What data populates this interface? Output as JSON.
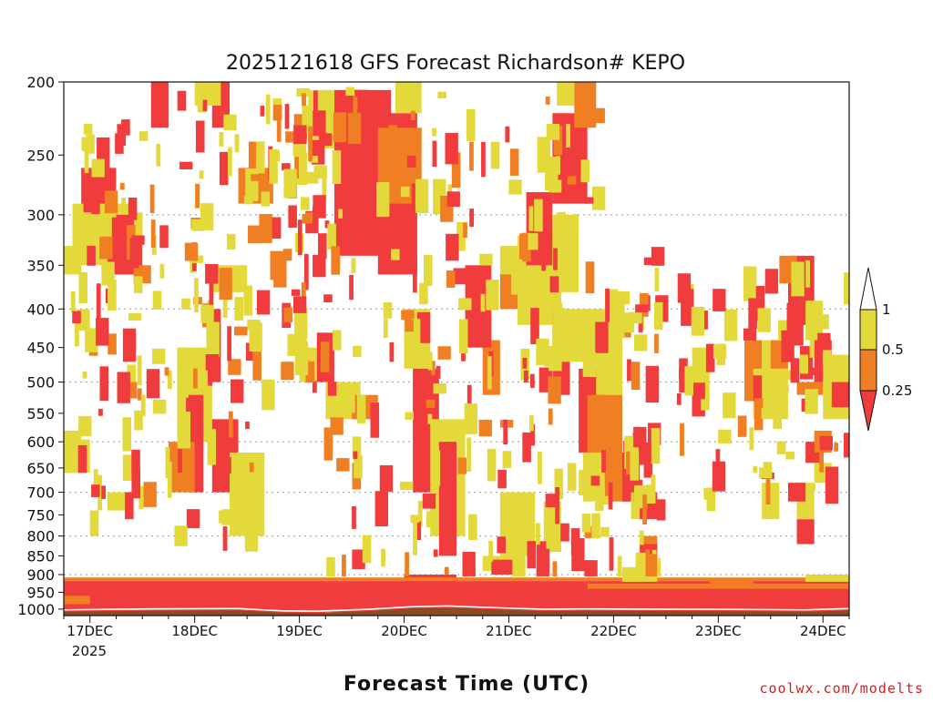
{
  "chart_data": {
    "type": "heatmap",
    "title": "2025121618 GFS Forecast Richardson# KEPO",
    "xlabel": "Forecast Time (UTC)",
    "ylabel": "",
    "source_credit": "coolwx.com/modelts",
    "x_tick_labels": [
      "17DEC",
      "18DEC",
      "19DEC",
      "20DEC",
      "21DEC",
      "22DEC",
      "23DEC",
      "24DEC"
    ],
    "x_year_label": "2025",
    "x_range_hours_from_init": [
      0,
      180
    ],
    "y_axis": "pressure_hPa",
    "y_scale": "log",
    "y_ticks": [
      200,
      250,
      300,
      350,
      400,
      450,
      500,
      550,
      600,
      650,
      700,
      750,
      800,
      850,
      900,
      950,
      1000
    ],
    "y_tick_labels": [
      "200",
      "250",
      "300",
      "350",
      "400",
      "450",
      "500",
      "550",
      "600",
      "650",
      "700",
      "750",
      "800",
      "850",
      "900",
      "950",
      "1000"
    ],
    "ylim": [
      1020,
      200
    ],
    "grid": "dotted horizontal at 300, 400, 500, 600, 700, 800, 900",
    "colorbar": {
      "placement": "right",
      "bins": [
        {
          "range": "0-0.25",
          "color": "#f03c3c"
        },
        {
          "range": "0.25-0.5",
          "color": "#ef7f22"
        },
        {
          "range": "0.5-1",
          "color": "#e3d93a"
        },
        {
          "range": ">1",
          "color": "#ffffff"
        }
      ],
      "tick_labels": [
        "0.25",
        "0.5",
        "1"
      ]
    },
    "colors": {
      "low": "#f03c3c",
      "mid": "#ef7f22",
      "high": "#e3d93a",
      "ground": "#8a4a24"
    },
    "regions": [
      {
        "cls": "low",
        "t0": 0,
        "t1": 180,
        "p0": 918,
        "p1": 1010
      },
      {
        "cls": "low",
        "t0": 6,
        "t1": 28,
        "p0": 925,
        "p1": 1010
      },
      {
        "cls": "low",
        "t0": 28,
        "t1": 36,
        "p0": 940,
        "p1": 1012
      },
      {
        "cls": "low",
        "t0": 48,
        "t1": 60,
        "p0": 945,
        "p1": 1015
      },
      {
        "cls": "low",
        "t0": 60,
        "t1": 78,
        "p0": 930,
        "p1": 1005
      },
      {
        "cls": "low",
        "t0": 78,
        "t1": 90,
        "p0": 900,
        "p1": 1000
      },
      {
        "cls": "low",
        "t0": 90,
        "t1": 102,
        "p0": 920,
        "p1": 1005
      },
      {
        "cls": "low",
        "t0": 108,
        "t1": 116,
        "p0": 920,
        "p1": 1010
      },
      {
        "cls": "mid",
        "t0": 0,
        "t1": 180,
        "p0": 908,
        "p1": 918
      },
      {
        "cls": "mid",
        "t0": 0,
        "t1": 6,
        "p0": 960,
        "p1": 985
      },
      {
        "cls": "mid",
        "t0": 120,
        "t1": 180,
        "p0": 925,
        "p1": 940
      },
      {
        "cls": "mid",
        "t0": 148,
        "t1": 158,
        "p0": 910,
        "p1": 925
      },
      {
        "cls": "high",
        "t0": 170,
        "t1": 180,
        "p0": 900,
        "p1": 920
      },
      {
        "cls": "high",
        "t0": 128,
        "t1": 136,
        "p0": 905,
        "p1": 920
      },
      {
        "cls": "low",
        "t0": 62,
        "t1": 75,
        "p0": 205,
        "p1": 340
      },
      {
        "cls": "low",
        "t0": 72,
        "t1": 81,
        "p0": 220,
        "p1": 360
      },
      {
        "cls": "mid",
        "t0": 72,
        "t1": 82,
        "p0": 230,
        "p1": 290
      },
      {
        "cls": "high",
        "t0": 56,
        "t1": 62,
        "p0": 205,
        "p1": 245
      },
      {
        "cls": "high",
        "t0": 76,
        "t1": 82,
        "p0": 200,
        "p1": 220
      },
      {
        "cls": "low",
        "t0": 112,
        "t1": 120,
        "p0": 220,
        "p1": 290
      },
      {
        "cls": "high",
        "t0": 113,
        "t1": 117,
        "p0": 200,
        "p1": 215
      },
      {
        "cls": "mid",
        "t0": 117,
        "t1": 122,
        "p0": 200,
        "p1": 230
      },
      {
        "cls": "low",
        "t0": 4,
        "t1": 12,
        "p0": 260,
        "p1": 300
      },
      {
        "cls": "high",
        "t0": 2,
        "t1": 16,
        "p0": 290,
        "p1": 350
      },
      {
        "cls": "low",
        "t0": 10,
        "t1": 18,
        "p0": 300,
        "p1": 360
      },
      {
        "cls": "high",
        "t0": 0,
        "t1": 4,
        "p0": 330,
        "p1": 360
      },
      {
        "cls": "low",
        "t0": 34,
        "t1": 38,
        "p0": 200,
        "p1": 230
      },
      {
        "cls": "high",
        "t0": 30,
        "t1": 36,
        "p0": 200,
        "p1": 215
      },
      {
        "cls": "mid",
        "t0": 40,
        "t1": 48,
        "p0": 260,
        "p1": 290
      },
      {
        "cls": "high",
        "t0": 34,
        "t1": 42,
        "p0": 350,
        "p1": 380
      },
      {
        "cls": "high",
        "t0": 26,
        "t1": 34,
        "p0": 450,
        "p1": 600
      },
      {
        "cls": "low",
        "t0": 28,
        "t1": 32,
        "p0": 520,
        "p1": 700
      },
      {
        "cls": "mid",
        "t0": 24,
        "t1": 30,
        "p0": 600,
        "p1": 700
      },
      {
        "cls": "low",
        "t0": 34,
        "t1": 40,
        "p0": 560,
        "p1": 700
      },
      {
        "cls": "high",
        "t0": 38,
        "t1": 46,
        "p0": 620,
        "p1": 800
      },
      {
        "cls": "low",
        "t0": 33,
        "t1": 36,
        "p0": 400,
        "p1": 500
      },
      {
        "cls": "high",
        "t0": 54,
        "t1": 58,
        "p0": 450,
        "p1": 500
      },
      {
        "cls": "low",
        "t0": 58,
        "t1": 62,
        "p0": 430,
        "p1": 500
      },
      {
        "cls": "high",
        "t0": 60,
        "t1": 68,
        "p0": 500,
        "p1": 560
      },
      {
        "cls": "mid",
        "t0": 66,
        "t1": 72,
        "p0": 520,
        "p1": 560
      },
      {
        "cls": "high",
        "t0": 78,
        "t1": 84,
        "p0": 400,
        "p1": 480
      },
      {
        "cls": "low",
        "t0": 80,
        "t1": 86,
        "p0": 480,
        "p1": 700
      },
      {
        "cls": "high",
        "t0": 84,
        "t1": 92,
        "p0": 560,
        "p1": 800
      },
      {
        "cls": "low",
        "t0": 86,
        "t1": 90,
        "p0": 600,
        "p1": 850
      },
      {
        "cls": "high",
        "t0": 96,
        "t1": 104,
        "p0": 850,
        "p1": 890
      },
      {
        "cls": "low",
        "t0": 98,
        "t1": 104,
        "p0": 860,
        "p1": 900
      },
      {
        "cls": "high",
        "t0": 100,
        "t1": 108,
        "p0": 700,
        "p1": 850
      },
      {
        "cls": "high",
        "t0": 110,
        "t1": 114,
        "p0": 720,
        "p1": 840
      },
      {
        "cls": "mid",
        "t0": 96,
        "t1": 100,
        "p0": 440,
        "p1": 520
      },
      {
        "cls": "low",
        "t0": 92,
        "t1": 98,
        "p0": 350,
        "p1": 450
      },
      {
        "cls": "high",
        "t0": 100,
        "t1": 104,
        "p0": 330,
        "p1": 400
      },
      {
        "cls": "mid",
        "t0": 100,
        "t1": 106,
        "p0": 360,
        "p1": 400
      },
      {
        "cls": "high",
        "t0": 104,
        "t1": 114,
        "p0": 320,
        "p1": 420
      },
      {
        "cls": "low",
        "t0": 106,
        "t1": 112,
        "p0": 280,
        "p1": 350
      },
      {
        "cls": "high",
        "t0": 112,
        "t1": 118,
        "p0": 300,
        "p1": 380
      },
      {
        "cls": "low",
        "t0": 112,
        "t1": 116,
        "p0": 400,
        "p1": 520
      },
      {
        "cls": "high",
        "t0": 112,
        "t1": 128,
        "p0": 400,
        "p1": 470
      },
      {
        "cls": "mid",
        "t0": 120,
        "t1": 124,
        "p0": 490,
        "p1": 620
      },
      {
        "cls": "low",
        "t0": 118,
        "t1": 124,
        "p0": 480,
        "p1": 620
      },
      {
        "cls": "high",
        "t0": 122,
        "t1": 128,
        "p0": 420,
        "p1": 520
      },
      {
        "cls": "mid",
        "t0": 120,
        "t1": 128,
        "p0": 520,
        "p1": 680
      },
      {
        "cls": "high",
        "t0": 119,
        "t1": 124,
        "p0": 620,
        "p1": 720
      },
      {
        "cls": "mid",
        "t0": 124,
        "t1": 132,
        "p0": 640,
        "p1": 720
      },
      {
        "cls": "low",
        "t0": 128,
        "t1": 132,
        "p0": 620,
        "p1": 720
      },
      {
        "cls": "high",
        "t0": 130,
        "t1": 134,
        "p0": 700,
        "p1": 760
      },
      {
        "cls": "low",
        "t0": 132,
        "t1": 136,
        "p0": 700,
        "p1": 760
      },
      {
        "cls": "mid",
        "t0": 132,
        "t1": 136,
        "p0": 800,
        "p1": 880
      },
      {
        "cls": "low",
        "t0": 132,
        "t1": 136,
        "p0": 820,
        "p1": 870
      },
      {
        "cls": "high",
        "t0": 128,
        "t1": 134,
        "p0": 880,
        "p1": 905
      },
      {
        "cls": "high",
        "t0": 144,
        "t1": 148,
        "p0": 450,
        "p1": 530
      },
      {
        "cls": "mid",
        "t0": 156,
        "t1": 160,
        "p0": 440,
        "p1": 530
      },
      {
        "cls": "high",
        "t0": 158,
        "t1": 166,
        "p0": 480,
        "p1": 560
      },
      {
        "cls": "low",
        "t0": 158,
        "t1": 160,
        "p0": 490,
        "p1": 530
      },
      {
        "cls": "high",
        "t0": 160,
        "t1": 164,
        "p0": 440,
        "p1": 480
      },
      {
        "cls": "mid",
        "t0": 162,
        "t1": 166,
        "p0": 440,
        "p1": 480
      },
      {
        "cls": "low",
        "t0": 166,
        "t1": 172,
        "p0": 340,
        "p1": 420
      },
      {
        "cls": "mid",
        "t0": 164,
        "t1": 168,
        "p0": 340,
        "p1": 370
      },
      {
        "cls": "high",
        "t0": 170,
        "t1": 174,
        "p0": 390,
        "p1": 440
      },
      {
        "cls": "low",
        "t0": 172,
        "t1": 176,
        "p0": 440,
        "p1": 500
      },
      {
        "cls": "mid",
        "t0": 168,
        "t1": 174,
        "p0": 500,
        "p1": 520
      },
      {
        "cls": "high",
        "t0": 174,
        "t1": 180,
        "p0": 460,
        "p1": 560
      },
      {
        "cls": "low",
        "t0": 176,
        "t1": 180,
        "p0": 500,
        "p1": 540
      },
      {
        "cls": "low",
        "t0": 170,
        "t1": 174,
        "p0": 600,
        "p1": 640
      },
      {
        "cls": "mid",
        "t0": 172,
        "t1": 176,
        "p0": 580,
        "p1": 620
      },
      {
        "cls": "low",
        "t0": 168,
        "t1": 172,
        "p0": 760,
        "p1": 820
      },
      {
        "cls": "high",
        "t0": 168,
        "t1": 172,
        "p0": 680,
        "p1": 760
      },
      {
        "cls": "low",
        "t0": 166,
        "t1": 170,
        "p0": 680,
        "p1": 720
      },
      {
        "cls": "high",
        "t0": 160,
        "t1": 164,
        "p0": 680,
        "p1": 760
      },
      {
        "cls": "high",
        "t0": 172,
        "t1": 176,
        "p0": 640,
        "p1": 680
      },
      {
        "cls": "high",
        "t0": 10,
        "t1": 14,
        "p0": 700,
        "p1": 740
      },
      {
        "cls": "low",
        "t0": 14,
        "t1": 16,
        "p0": 700,
        "p1": 760
      },
      {
        "cls": "high",
        "t0": 6,
        "t1": 8,
        "p0": 740,
        "p1": 800
      },
      {
        "cls": "high",
        "t0": 0,
        "t1": 4,
        "p0": 580,
        "p1": 660
      },
      {
        "cls": "low",
        "t0": 20,
        "t1": 24,
        "p0": 200,
        "p1": 230
      },
      {
        "cls": "mid",
        "t0": 16,
        "t1": 20,
        "p0": 350,
        "p1": 370
      }
    ],
    "streaks_seed": 20251216,
    "streak_count": 520
  }
}
